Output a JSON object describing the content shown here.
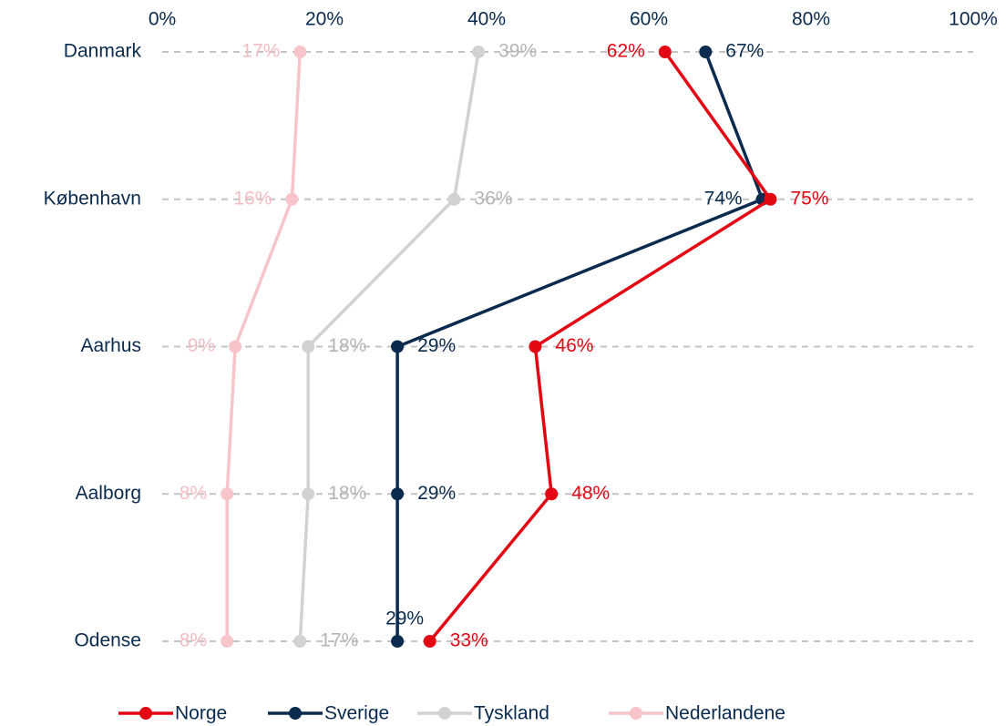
{
  "chart_data": {
    "type": "line",
    "categories": [
      "Danmark",
      "København",
      "Aarhus",
      "Aalborg",
      "Odense"
    ],
    "series": [
      {
        "name": "Norge",
        "color": "#e30613",
        "values": [
          62,
          75,
          46,
          48,
          33
        ],
        "value_labels": [
          "62%",
          "75%",
          "46%",
          "48%",
          "33%"
        ]
      },
      {
        "name": "Sverige",
        "color": "#0a2b4e",
        "values": [
          67,
          74,
          29,
          29,
          29
        ],
        "value_labels": [
          "67%",
          "74%",
          "29%",
          "29%",
          "29%"
        ]
      },
      {
        "name": "Tyskland",
        "color": "#d2d2d2",
        "values": [
          39,
          36,
          18,
          18,
          17
        ],
        "value_labels": [
          "39%",
          "36%",
          "18%",
          "18%",
          "17%"
        ]
      },
      {
        "name": "Nederlandene",
        "color": "#f7c4ca",
        "values": [
          17,
          16,
          9,
          8,
          8
        ],
        "value_labels": [
          "17%",
          "16%",
          "9%",
          "8%",
          "8%"
        ]
      }
    ],
    "xlim": [
      0,
      100
    ],
    "xticks": [
      {
        "value": 0,
        "label": "0%"
      },
      {
        "value": 20,
        "label": "20%"
      },
      {
        "value": 40,
        "label": "40%"
      },
      {
        "value": 60,
        "label": "60%"
      },
      {
        "value": 80,
        "label": "80%"
      },
      {
        "value": 100,
        "label": "100%"
      }
    ],
    "grid": true,
    "legend": "bottom"
  }
}
